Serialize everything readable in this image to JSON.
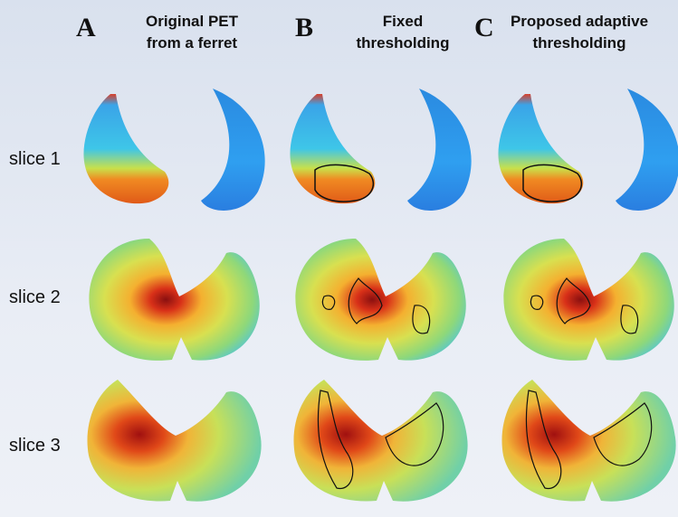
{
  "columns": [
    {
      "letter": "A",
      "title": [
        "Original PET",
        "from a ferret"
      ]
    },
    {
      "letter": "B",
      "title": [
        "Fixed",
        "thresholding"
      ]
    },
    {
      "letter": "C",
      "title": [
        "Proposed adaptive",
        "thresholding"
      ]
    }
  ],
  "rows": [
    "slice 1",
    "slice 2",
    "slice 3"
  ]
}
